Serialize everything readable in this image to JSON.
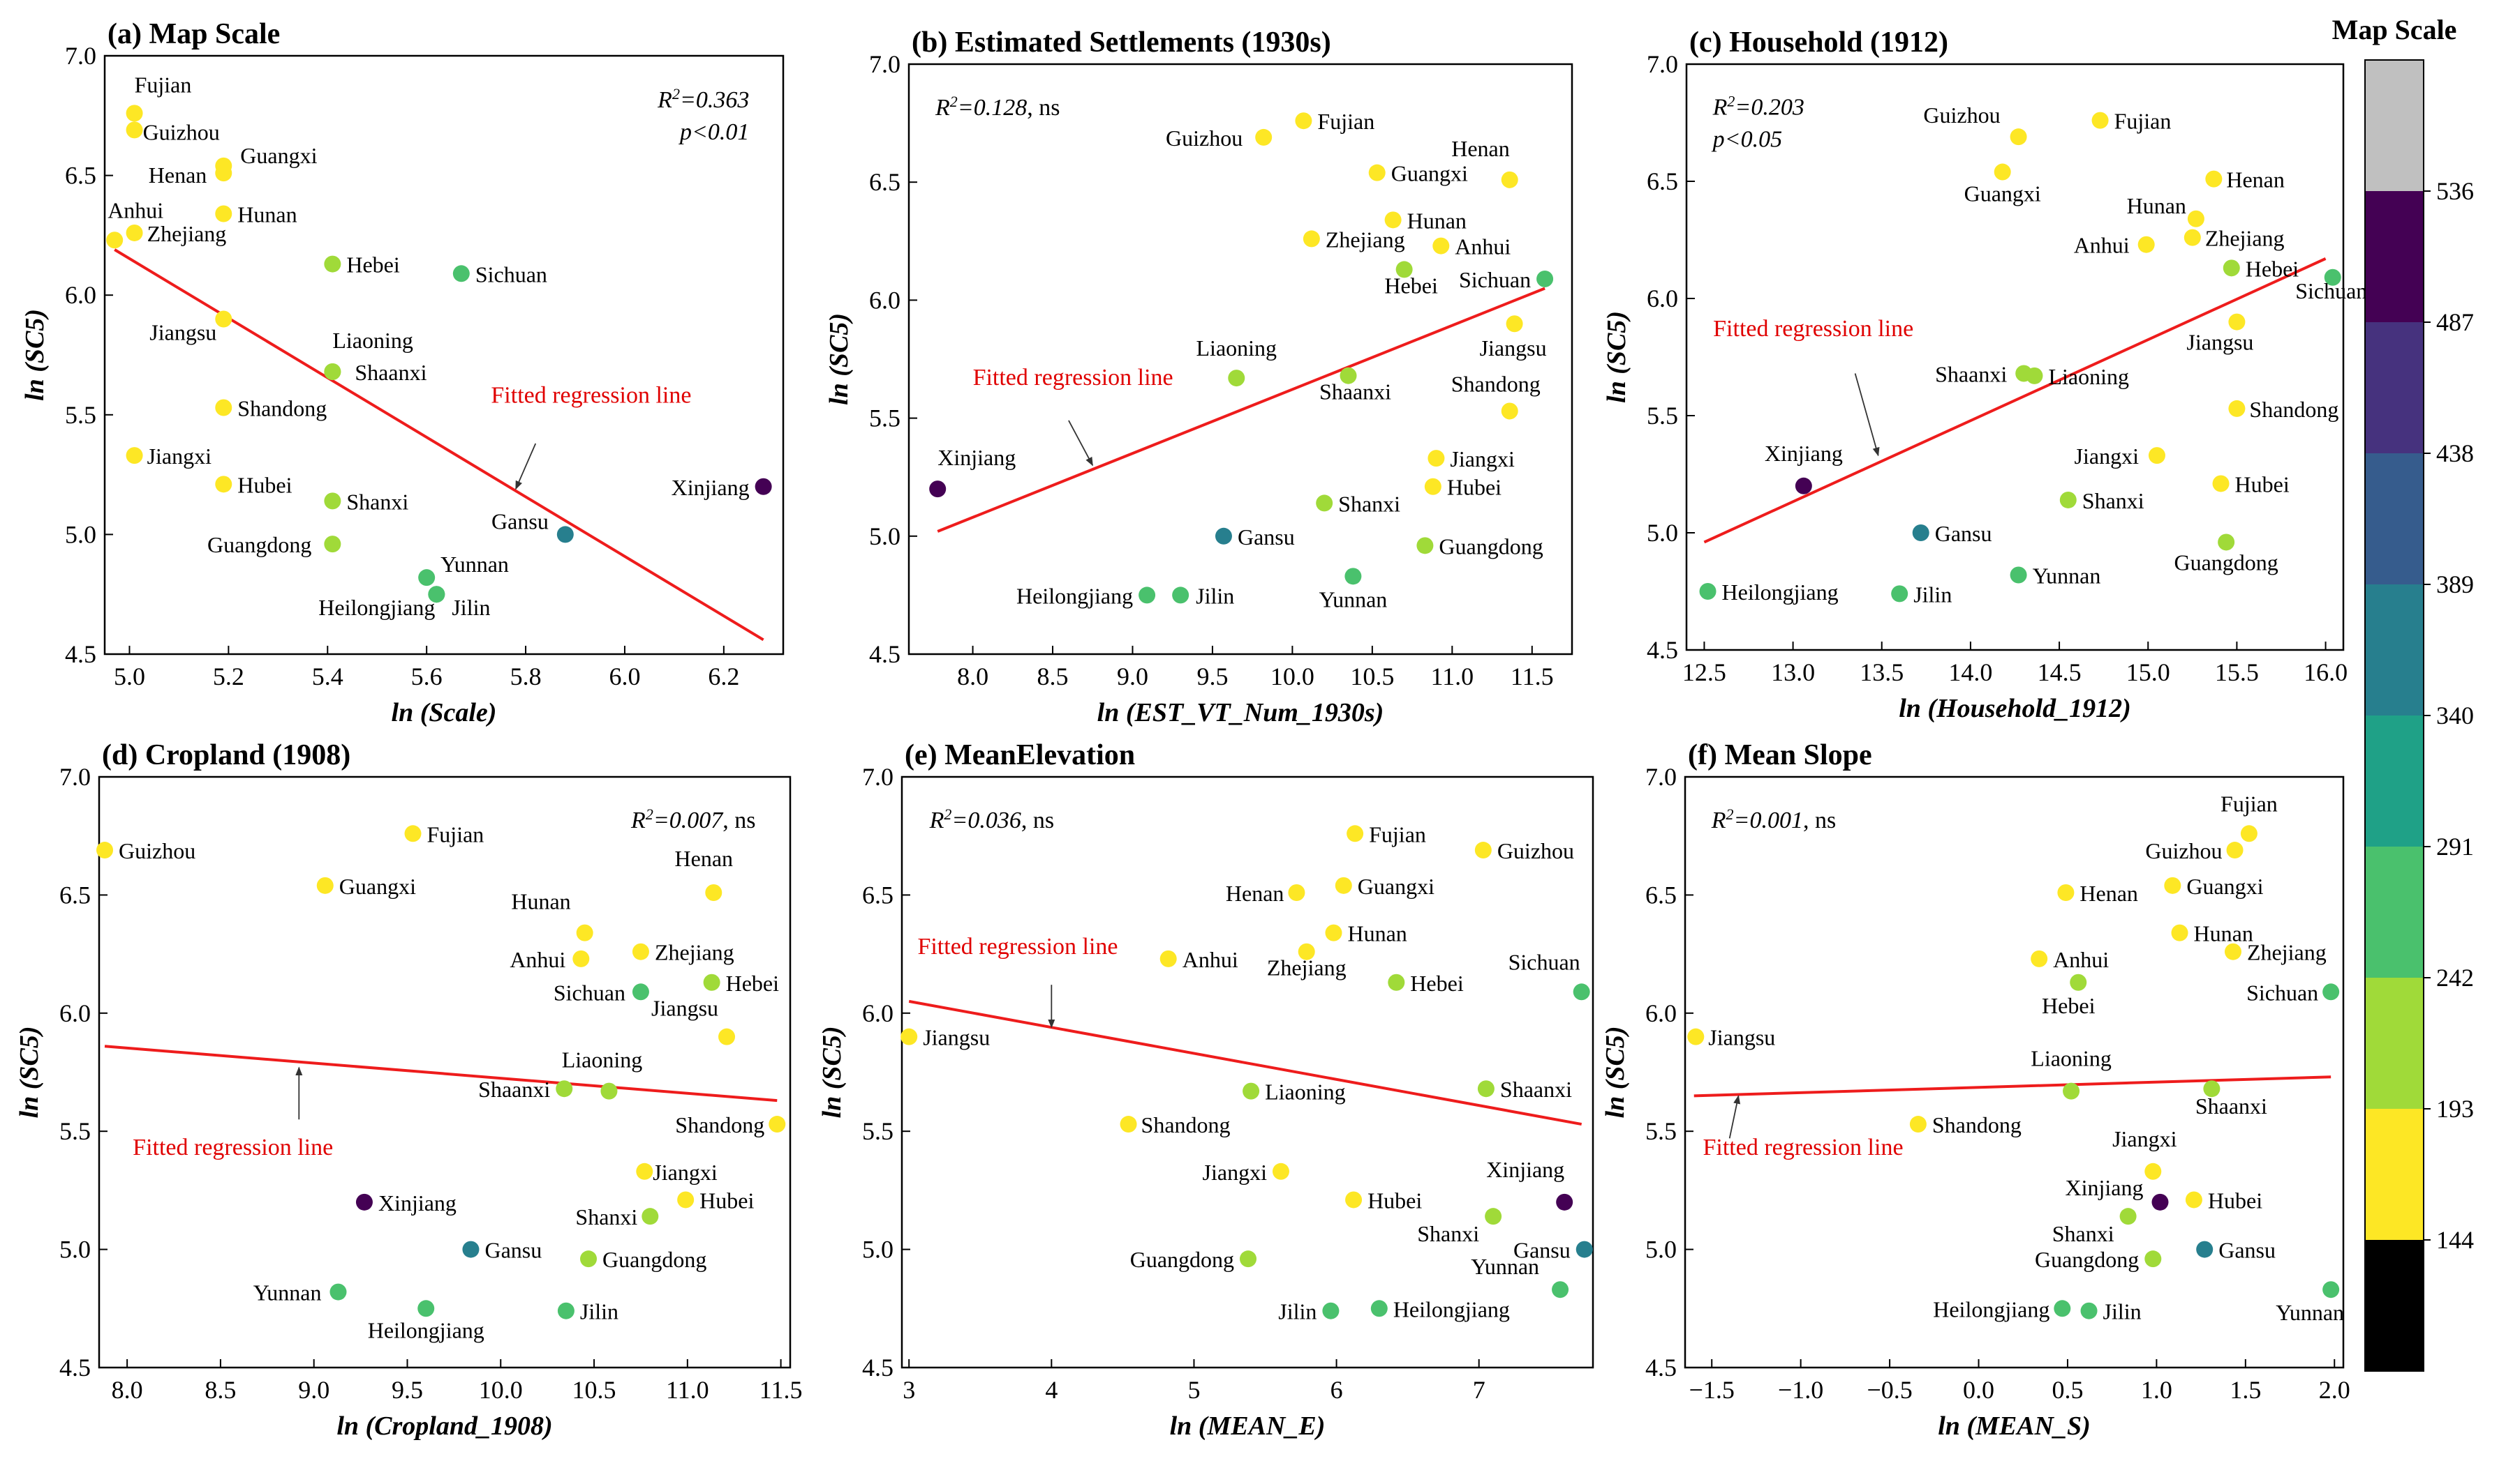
{
  "colorbar": {
    "title": "Map Scale",
    "ticks": [
      "144",
      "193",
      "242",
      "291",
      "340",
      "389",
      "438",
      "487",
      "536"
    ],
    "colors": [
      "#000000",
      "#fde725",
      "#a0da39",
      "#4ac16d",
      "#1fa187",
      "#277f8e",
      "#365c8d",
      "#46327e",
      "#440154",
      "#c0c0c0"
    ]
  },
  "fit_label": "Fitted regression line",
  "chart_data": [
    {
      "id": "a",
      "type": "scatter",
      "title": "(a) Map Scale",
      "xlabel": "ln (Scale)",
      "ylabel": "ln (SC5)",
      "xlim": [
        4.95,
        6.32
      ],
      "ylim": [
        4.5,
        7.0
      ],
      "xticks": [
        5.0,
        5.2,
        5.4,
        5.6,
        5.8,
        6.0,
        6.2
      ],
      "xdec": 1,
      "yticks": [
        4.5,
        5.0,
        5.5,
        6.0,
        6.5,
        7.0
      ],
      "ydec": 1,
      "stat": "R²=0.363 | p<0.01",
      "stat_pos": "top-right",
      "fit": [
        [
          4.97,
          6.19
        ],
        [
          6.28,
          4.56
        ]
      ],
      "points": [
        {
          "name": "Fujian",
          "x": 5.01,
          "y": 6.76,
          "c": 1
        },
        {
          "name": "Guizhou",
          "x": 5.01,
          "y": 6.69,
          "c": 1
        },
        {
          "name": "Guangxi",
          "x": 5.19,
          "y": 6.54,
          "c": 1
        },
        {
          "name": "Henan",
          "x": 5.19,
          "y": 6.51,
          "c": 1
        },
        {
          "name": "Hunan",
          "x": 5.19,
          "y": 6.34,
          "c": 1
        },
        {
          "name": "Anhui",
          "x": 4.97,
          "y": 6.23,
          "c": 1
        },
        {
          "name": "Zhejiang",
          "x": 5.01,
          "y": 6.26,
          "c": 1
        },
        {
          "name": "Hebei",
          "x": 5.41,
          "y": 6.13,
          "c": 2
        },
        {
          "name": "Sichuan",
          "x": 5.67,
          "y": 6.09,
          "c": 3
        },
        {
          "name": "Jiangsu",
          "x": 5.19,
          "y": 5.9,
          "c": 1
        },
        {
          "name": "Liaoning",
          "x": 5.41,
          "y": 5.68,
          "c": 2
        },
        {
          "name": "Shaanxi",
          "x": 5.41,
          "y": 5.68,
          "c": 2
        },
        {
          "name": "Shandong",
          "x": 5.19,
          "y": 5.53,
          "c": 1
        },
        {
          "name": "Jiangxi",
          "x": 5.01,
          "y": 5.33,
          "c": 1
        },
        {
          "name": "Hubei",
          "x": 5.19,
          "y": 5.21,
          "c": 1
        },
        {
          "name": "Shanxi",
          "x": 5.41,
          "y": 5.14,
          "c": 2
        },
        {
          "name": "Xinjiang",
          "x": 6.28,
          "y": 5.2,
          "c": 8
        },
        {
          "name": "Gansu",
          "x": 5.88,
          "y": 5.0,
          "c": 5
        },
        {
          "name": "Guangdong",
          "x": 5.41,
          "y": 4.96,
          "c": 2
        },
        {
          "name": "Yunnan",
          "x": 5.6,
          "y": 4.82,
          "c": 3
        },
        {
          "name": "Heilongjiang",
          "x": 5.62,
          "y": 4.75,
          "c": 3
        },
        {
          "name": "Jilin",
          "x": 5.62,
          "y": 4.75,
          "c": 3
        }
      ]
    },
    {
      "id": "b",
      "type": "scatter",
      "title": "(b) Estimated Settlements (1930s)",
      "xlabel": "ln (EST_VT_Num_1930s)",
      "ylabel": "ln (SC5)",
      "xlim": [
        7.6,
        11.75
      ],
      "ylim": [
        4.5,
        7.0
      ],
      "xticks": [
        8.0,
        8.5,
        9.0,
        9.5,
        10.0,
        10.5,
        11.0,
        11.5
      ],
      "xdec": 1,
      "yticks": [
        4.5,
        5.0,
        5.5,
        6.0,
        6.5,
        7.0
      ],
      "ydec": 1,
      "stat": "R²=0.128, ns",
      "stat_pos": "top-left",
      "fit": [
        [
          7.78,
          5.02
        ],
        [
          11.58,
          6.05
        ]
      ],
      "points": [
        {
          "name": "Guizhou",
          "x": 9.82,
          "y": 6.69,
          "c": 1
        },
        {
          "name": "Fujian",
          "x": 10.07,
          "y": 6.76,
          "c": 1
        },
        {
          "name": "Guangxi",
          "x": 10.53,
          "y": 6.54,
          "c": 1
        },
        {
          "name": "Henan",
          "x": 11.36,
          "y": 6.51,
          "c": 1
        },
        {
          "name": "Hunan",
          "x": 10.63,
          "y": 6.34,
          "c": 1
        },
        {
          "name": "Zhejiang",
          "x": 10.12,
          "y": 6.26,
          "c": 1
        },
        {
          "name": "Anhui",
          "x": 10.93,
          "y": 6.23,
          "c": 1
        },
        {
          "name": "Hebei",
          "x": 10.7,
          "y": 6.13,
          "c": 2
        },
        {
          "name": "Sichuan",
          "x": 11.58,
          "y": 6.09,
          "c": 3
        },
        {
          "name": "Jiangsu",
          "x": 11.39,
          "y": 5.9,
          "c": 1
        },
        {
          "name": "Liaoning",
          "x": 9.65,
          "y": 5.67,
          "c": 2
        },
        {
          "name": "Shaanxi",
          "x": 10.35,
          "y": 5.68,
          "c": 2
        },
        {
          "name": "Shandong",
          "x": 11.36,
          "y": 5.53,
          "c": 1
        },
        {
          "name": "Jiangxi",
          "x": 10.9,
          "y": 5.33,
          "c": 1
        },
        {
          "name": "Hubei",
          "x": 10.88,
          "y": 5.21,
          "c": 1
        },
        {
          "name": "Xinjiang",
          "x": 7.78,
          "y": 5.2,
          "c": 8
        },
        {
          "name": "Shanxi",
          "x": 10.2,
          "y": 5.14,
          "c": 2
        },
        {
          "name": "Gansu",
          "x": 9.57,
          "y": 5.0,
          "c": 5
        },
        {
          "name": "Guangdong",
          "x": 10.83,
          "y": 4.96,
          "c": 2
        },
        {
          "name": "Yunnan",
          "x": 10.38,
          "y": 4.83,
          "c": 3
        },
        {
          "name": "Heilongjiang",
          "x": 9.09,
          "y": 4.75,
          "c": 3
        },
        {
          "name": "Jilin",
          "x": 9.3,
          "y": 4.75,
          "c": 3
        }
      ]
    },
    {
      "id": "c",
      "type": "scatter",
      "title": "(c) Household (1912)",
      "xlabel": "ln (Household_1912)",
      "ylabel": "ln (SC5)",
      "xlim": [
        12.4,
        16.1
      ],
      "ylim": [
        4.5,
        7.0
      ],
      "xticks": [
        12.5,
        13.0,
        13.5,
        14.0,
        14.5,
        15.0,
        15.5,
        16.0
      ],
      "xdec": 1,
      "yticks": [
        4.5,
        5.0,
        5.5,
        6.0,
        6.5,
        7.0
      ],
      "ydec": 1,
      "stat": "R²=0.203 | p<0.05",
      "stat_pos": "top-left",
      "fit": [
        [
          12.5,
          4.96
        ],
        [
          16.0,
          6.17
        ]
      ],
      "points": [
        {
          "name": "Guizhou",
          "x": 14.27,
          "y": 6.69,
          "c": 1
        },
        {
          "name": "Fujian",
          "x": 14.73,
          "y": 6.76,
          "c": 1
        },
        {
          "name": "Guangxi",
          "x": 14.18,
          "y": 6.54,
          "c": 1
        },
        {
          "name": "Henan",
          "x": 15.37,
          "y": 6.51,
          "c": 1
        },
        {
          "name": "Hunan",
          "x": 15.27,
          "y": 6.34,
          "c": 1
        },
        {
          "name": "Zhejiang",
          "x": 15.25,
          "y": 6.26,
          "c": 1
        },
        {
          "name": "Anhui",
          "x": 14.99,
          "y": 6.23,
          "c": 1
        },
        {
          "name": "Hebei",
          "x": 15.47,
          "y": 6.13,
          "c": 2
        },
        {
          "name": "Sichuan",
          "x": 16.04,
          "y": 6.09,
          "c": 3
        },
        {
          "name": "Jiangsu",
          "x": 15.5,
          "y": 5.9,
          "c": 1
        },
        {
          "name": "Shaanxi",
          "x": 14.3,
          "y": 5.68,
          "c": 2
        },
        {
          "name": "Liaoning",
          "x": 14.36,
          "y": 5.67,
          "c": 2
        },
        {
          "name": "Shandong",
          "x": 15.5,
          "y": 5.53,
          "c": 1
        },
        {
          "name": "Jiangxi",
          "x": 15.05,
          "y": 5.33,
          "c": 1
        },
        {
          "name": "Xinjiang",
          "x": 13.06,
          "y": 5.2,
          "c": 8
        },
        {
          "name": "Hubei",
          "x": 15.41,
          "y": 5.21,
          "c": 1
        },
        {
          "name": "Shanxi",
          "x": 14.55,
          "y": 5.14,
          "c": 2
        },
        {
          "name": "Gansu",
          "x": 13.72,
          "y": 5.0,
          "c": 5
        },
        {
          "name": "Guangdong",
          "x": 15.44,
          "y": 4.96,
          "c": 2
        },
        {
          "name": "Yunnan",
          "x": 14.27,
          "y": 4.82,
          "c": 3
        },
        {
          "name": "Heilongjiang",
          "x": 12.52,
          "y": 4.75,
          "c": 3
        },
        {
          "name": "Jilin",
          "x": 13.6,
          "y": 4.74,
          "c": 3
        }
      ]
    },
    {
      "id": "d",
      "type": "scatter",
      "title": "(d) Cropland (1908)",
      "xlabel": "ln (Cropland_1908)",
      "ylabel": "ln (SC5)",
      "xlim": [
        7.85,
        11.55
      ],
      "ylim": [
        4.5,
        7.0
      ],
      "xticks": [
        8.0,
        8.5,
        9.0,
        9.5,
        10.0,
        10.5,
        11.0,
        11.5
      ],
      "xdec": 1,
      "yticks": [
        4.5,
        5.0,
        5.5,
        6.0,
        6.5,
        7.0
      ],
      "ydec": 1,
      "stat": "R²=0.007, ns",
      "stat_pos": "top-right",
      "fit": [
        [
          7.88,
          5.86
        ],
        [
          11.48,
          5.63
        ]
      ],
      "points": [
        {
          "name": "Guizhou",
          "x": 7.88,
          "y": 6.69,
          "c": 1
        },
        {
          "name": "Fujian",
          "x": 9.53,
          "y": 6.76,
          "c": 1
        },
        {
          "name": "Guangxi",
          "x": 9.06,
          "y": 6.54,
          "c": 1
        },
        {
          "name": "Henan",
          "x": 11.14,
          "y": 6.51,
          "c": 1
        },
        {
          "name": "Hunan",
          "x": 10.45,
          "y": 6.34,
          "c": 1
        },
        {
          "name": "Anhui",
          "x": 10.43,
          "y": 6.23,
          "c": 1
        },
        {
          "name": "Zhejiang",
          "x": 10.75,
          "y": 6.26,
          "c": 1
        },
        {
          "name": "Hebei",
          "x": 11.13,
          "y": 6.13,
          "c": 2
        },
        {
          "name": "Sichuan",
          "x": 10.75,
          "y": 6.09,
          "c": 3
        },
        {
          "name": "Jiangsu",
          "x": 11.21,
          "y": 5.9,
          "c": 1
        },
        {
          "name": "Liaoning",
          "x": 10.58,
          "y": 5.67,
          "c": 2
        },
        {
          "name": "Shaanxi",
          "x": 10.34,
          "y": 5.68,
          "c": 2
        },
        {
          "name": "Shandong",
          "x": 11.48,
          "y": 5.53,
          "c": 1
        },
        {
          "name": "Jiangxi",
          "x": 10.77,
          "y": 5.33,
          "c": 1
        },
        {
          "name": "Xinjiang",
          "x": 9.27,
          "y": 5.2,
          "c": 8
        },
        {
          "name": "Hubei",
          "x": 10.99,
          "y": 5.21,
          "c": 1
        },
        {
          "name": "Shanxi",
          "x": 10.8,
          "y": 5.14,
          "c": 2
        },
        {
          "name": "Gansu",
          "x": 9.84,
          "y": 5.0,
          "c": 5
        },
        {
          "name": "Guangdong",
          "x": 10.47,
          "y": 4.96,
          "c": 2
        },
        {
          "name": "Yunnan",
          "x": 9.13,
          "y": 4.82,
          "c": 3
        },
        {
          "name": "Heilongjiang",
          "x": 9.6,
          "y": 4.75,
          "c": 3
        },
        {
          "name": "Jilin",
          "x": 10.35,
          "y": 4.74,
          "c": 3
        }
      ]
    },
    {
      "id": "e",
      "type": "scatter",
      "title": "(e) MeanElevation",
      "xlabel": "ln (MEAN_E)",
      "ylabel": "ln (SC5)",
      "xlim": [
        2.95,
        7.8
      ],
      "ylim": [
        4.5,
        7.0
      ],
      "xticks": [
        3,
        4,
        5,
        6,
        7
      ],
      "xdec": 0,
      "yticks": [
        4.5,
        5.0,
        5.5,
        6.0,
        6.5,
        7.0
      ],
      "ydec": 1,
      "stat": "R²=0.036, ns",
      "stat_pos": "top-left",
      "fit": [
        [
          3.0,
          6.05
        ],
        [
          7.72,
          5.53
        ]
      ],
      "points": [
        {
          "name": "Fujian",
          "x": 6.13,
          "y": 6.76,
          "c": 1
        },
        {
          "name": "Guizhou",
          "x": 7.03,
          "y": 6.69,
          "c": 1
        },
        {
          "name": "Henan",
          "x": 5.72,
          "y": 6.51,
          "c": 1
        },
        {
          "name": "Guangxi",
          "x": 6.05,
          "y": 6.54,
          "c": 1
        },
        {
          "name": "Hunan",
          "x": 5.98,
          "y": 6.34,
          "c": 1
        },
        {
          "name": "Anhui",
          "x": 4.82,
          "y": 6.23,
          "c": 1
        },
        {
          "name": "Zhejiang",
          "x": 5.79,
          "y": 6.26,
          "c": 1
        },
        {
          "name": "Hebei",
          "x": 6.42,
          "y": 6.13,
          "c": 2
        },
        {
          "name": "Sichuan",
          "x": 7.72,
          "y": 6.09,
          "c": 3
        },
        {
          "name": "Jiangsu",
          "x": 3.0,
          "y": 5.9,
          "c": 1
        },
        {
          "name": "Liaoning",
          "x": 5.4,
          "y": 5.67,
          "c": 2
        },
        {
          "name": "Shaanxi",
          "x": 7.05,
          "y": 5.68,
          "c": 2
        },
        {
          "name": "Shandong",
          "x": 4.54,
          "y": 5.53,
          "c": 1
        },
        {
          "name": "Jiangxi",
          "x": 5.61,
          "y": 5.33,
          "c": 1
        },
        {
          "name": "Hubei",
          "x": 6.12,
          "y": 5.21,
          "c": 1
        },
        {
          "name": "Xinjiang",
          "x": 7.6,
          "y": 5.2,
          "c": 8
        },
        {
          "name": "Shanxi",
          "x": 7.1,
          "y": 5.14,
          "c": 2
        },
        {
          "name": "Gansu",
          "x": 7.74,
          "y": 5.0,
          "c": 5
        },
        {
          "name": "Guangdong",
          "x": 5.38,
          "y": 4.96,
          "c": 2
        },
        {
          "name": "Yunnan",
          "x": 7.57,
          "y": 4.83,
          "c": 3
        },
        {
          "name": "Jilin",
          "x": 5.96,
          "y": 4.74,
          "c": 3
        },
        {
          "name": "Heilongjiang",
          "x": 6.3,
          "y": 4.75,
          "c": 3
        }
      ]
    },
    {
      "id": "f",
      "type": "scatter",
      "title": "(f) Mean Slope",
      "xlabel": "ln (MEAN_S)",
      "ylabel": "ln (SC5)",
      "xlim": [
        -1.65,
        2.05
      ],
      "ylim": [
        4.5,
        7.0
      ],
      "xticks": [
        -1.5,
        -1.0,
        -0.5,
        0.0,
        0.5,
        1.0,
        1.5,
        2.0
      ],
      "xdec": 1,
      "yticks": [
        4.5,
        5.0,
        5.5,
        6.0,
        6.5,
        7.0
      ],
      "ydec": 1,
      "stat": "R²=0.001, ns",
      "stat_pos": "top-left",
      "fit": [
        [
          -1.6,
          5.65
        ],
        [
          1.98,
          5.73
        ]
      ],
      "points": [
        {
          "name": "Fujian",
          "x": 1.52,
          "y": 6.76,
          "c": 1
        },
        {
          "name": "Guizhou",
          "x": 1.44,
          "y": 6.69,
          "c": 1
        },
        {
          "name": "Guangxi",
          "x": 1.09,
          "y": 6.54,
          "c": 1
        },
        {
          "name": "Henan",
          "x": 0.49,
          "y": 6.51,
          "c": 1
        },
        {
          "name": "Hunan",
          "x": 1.13,
          "y": 6.34,
          "c": 1
        },
        {
          "name": "Anhui",
          "x": 0.34,
          "y": 6.23,
          "c": 1
        },
        {
          "name": "Zhejiang",
          "x": 1.43,
          "y": 6.26,
          "c": 1
        },
        {
          "name": "Hebei",
          "x": 0.56,
          "y": 6.13,
          "c": 2
        },
        {
          "name": "Sichuan",
          "x": 1.98,
          "y": 6.09,
          "c": 3
        },
        {
          "name": "Jiangsu",
          "x": -1.59,
          "y": 5.9,
          "c": 1
        },
        {
          "name": "Liaoning",
          "x": 0.52,
          "y": 5.67,
          "c": 2
        },
        {
          "name": "Shaanxi",
          "x": 1.31,
          "y": 5.68,
          "c": 2
        },
        {
          "name": "Shandong",
          "x": -0.34,
          "y": 5.53,
          "c": 1
        },
        {
          "name": "Jiangxi",
          "x": 0.98,
          "y": 5.33,
          "c": 1
        },
        {
          "name": "Xinjiang",
          "x": 1.02,
          "y": 5.2,
          "c": 8
        },
        {
          "name": "Hubei",
          "x": 1.21,
          "y": 5.21,
          "c": 1
        },
        {
          "name": "Shanxi",
          "x": 0.84,
          "y": 5.14,
          "c": 2
        },
        {
          "name": "Gansu",
          "x": 1.27,
          "y": 5.0,
          "c": 5
        },
        {
          "name": "Guangdong",
          "x": 0.98,
          "y": 4.96,
          "c": 2
        },
        {
          "name": "Yunnan",
          "x": 1.98,
          "y": 4.83,
          "c": 3
        },
        {
          "name": "Heilongjiang",
          "x": 0.47,
          "y": 4.75,
          "c": 3
        },
        {
          "name": "Jilin",
          "x": 0.62,
          "y": 4.74,
          "c": 3
        }
      ]
    }
  ]
}
